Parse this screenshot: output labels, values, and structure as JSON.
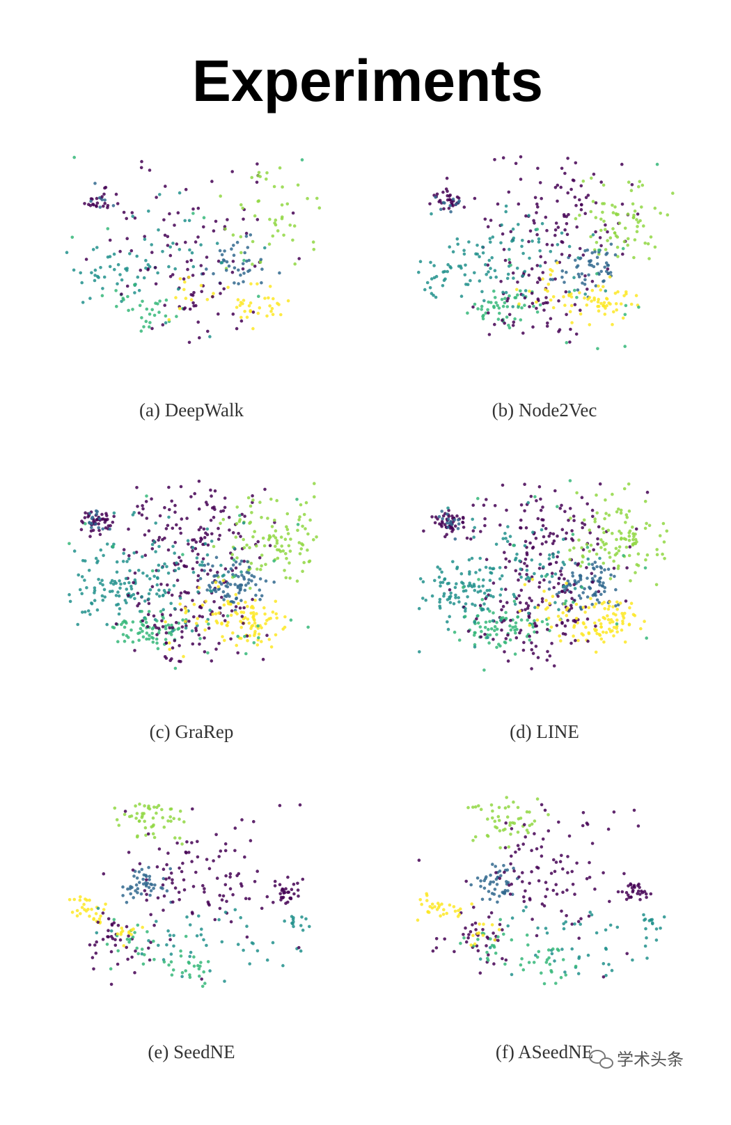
{
  "title": "Experiments",
  "figures": [
    {
      "caption": "(a) DeepWalk"
    },
    {
      "caption": "(b) Node2Vec"
    },
    {
      "caption": "(c) GraRep"
    },
    {
      "caption": "(d) LINE"
    },
    {
      "caption": "(e) SeedNE"
    },
    {
      "caption": "(f) ASeedNE"
    }
  ],
  "watermark": "学术头条"
}
